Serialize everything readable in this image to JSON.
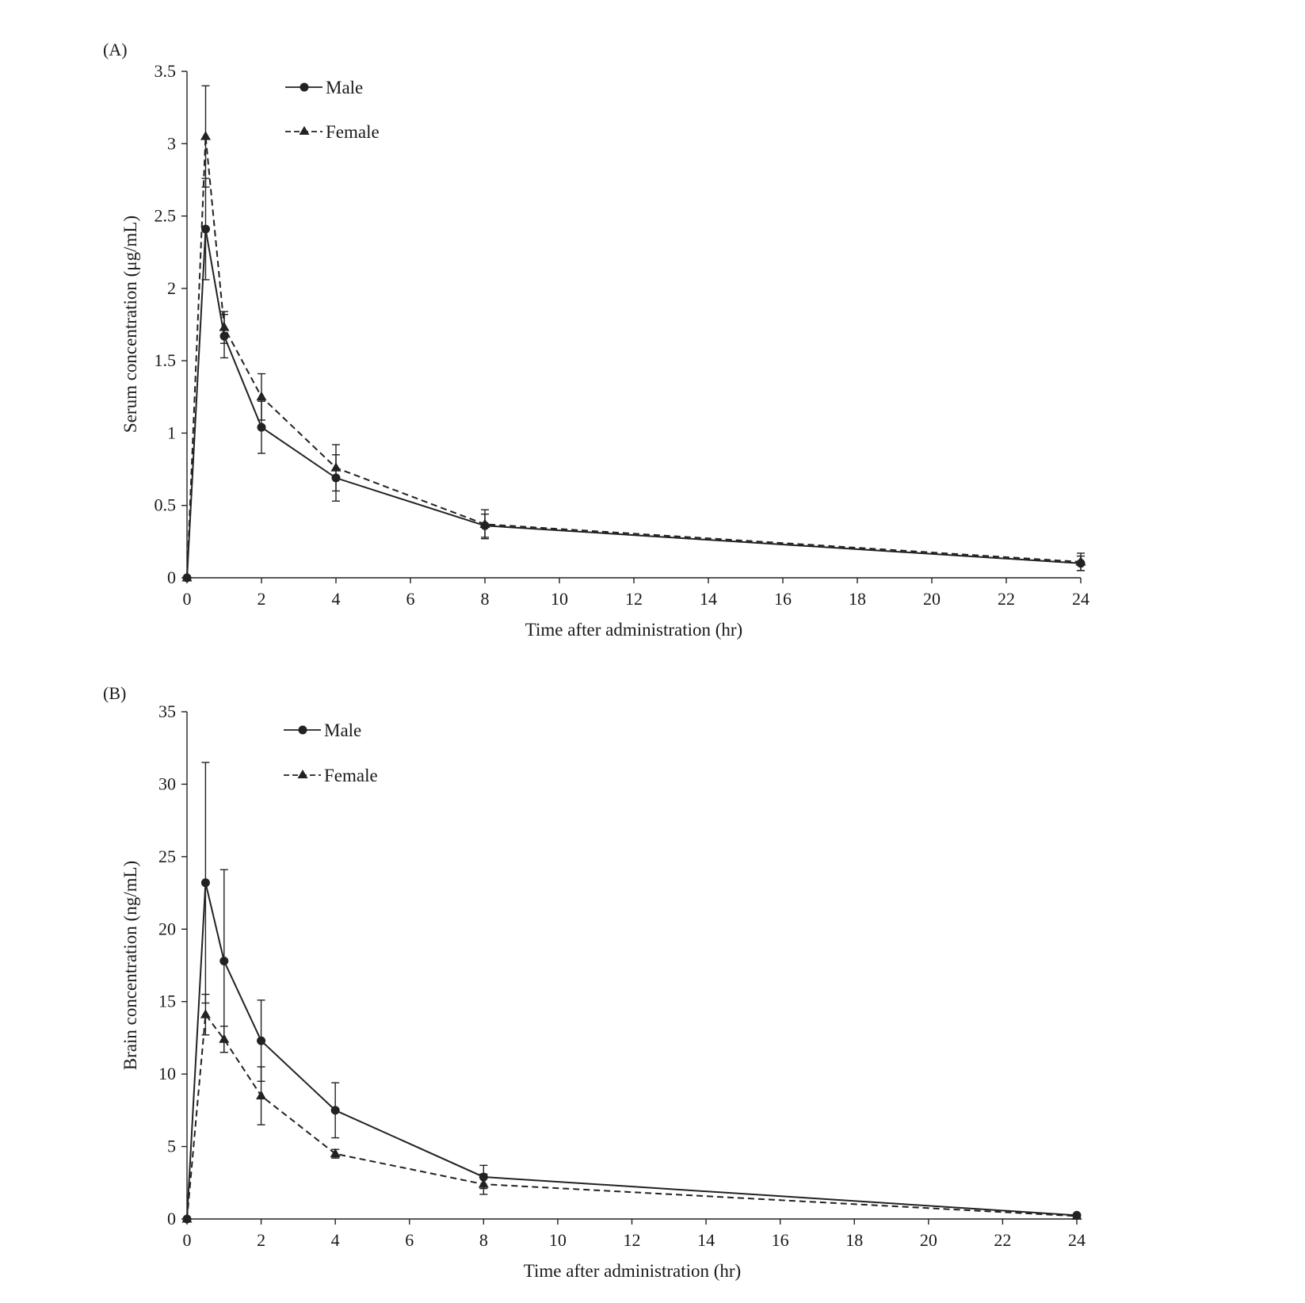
{
  "chart_data": [
    {
      "panel": "(A)",
      "type": "line",
      "xlabel": "Time after administration (hr)",
      "ylabel": "Serum concentration (μg/mL)",
      "xlim": [
        0,
        24
      ],
      "ylim": [
        0,
        3.5
      ],
      "xticks": [
        "0",
        "2",
        "4",
        "6",
        "8",
        "10",
        "12",
        "14",
        "16",
        "18",
        "20",
        "22",
        "24"
      ],
      "yticks": [
        "0",
        "0.5",
        "1",
        "1.5",
        "2",
        "2.5",
        "3",
        "3.5"
      ],
      "legend_position": "top-left",
      "grid": false,
      "x": [
        0,
        0.5,
        1,
        2,
        4,
        8,
        24
      ],
      "series": [
        {
          "name": "Male",
          "marker": "circle",
          "line_style": "solid",
          "color": "#222222",
          "values": [
            0,
            2.41,
            1.67,
            1.04,
            0.69,
            0.36,
            0.1
          ],
          "error": [
            0,
            0.35,
            0.15,
            0.18,
            0.16,
            0.08,
            0.05
          ]
        },
        {
          "name": "Female",
          "marker": "triangle",
          "line_style": "dashed",
          "color": "#222222",
          "values": [
            0,
            3.05,
            1.73,
            1.25,
            0.76,
            0.37,
            0.11
          ],
          "error": [
            0,
            0.35,
            0.11,
            0.16,
            0.16,
            0.1,
            0.06
          ]
        }
      ]
    },
    {
      "panel": "(B)",
      "type": "line",
      "xlabel": "Time after administration (hr)",
      "ylabel": "Brain concentration (ng/mL)",
      "xlim": [
        0,
        24
      ],
      "ylim": [
        0,
        35
      ],
      "xticks": [
        "0",
        "2",
        "4",
        "6",
        "8",
        "10",
        "12",
        "14",
        "16",
        "18",
        "20",
        "22",
        "24"
      ],
      "yticks": [
        "0",
        "5",
        "10",
        "15",
        "20",
        "25",
        "30",
        "35"
      ],
      "legend_position": "top-left",
      "grid": false,
      "x": [
        0,
        0.5,
        1,
        2,
        4,
        8,
        24
      ],
      "series": [
        {
          "name": "Male",
          "marker": "circle",
          "line_style": "solid",
          "color": "#222222",
          "values": [
            0,
            23.2,
            17.8,
            12.3,
            7.5,
            2.9,
            0.25
          ],
          "error": [
            0,
            8.3,
            6.3,
            2.8,
            1.9,
            0.8,
            0.1
          ]
        },
        {
          "name": "Female",
          "marker": "triangle",
          "line_style": "dashed",
          "color": "#222222",
          "values": [
            0,
            14.1,
            12.4,
            8.5,
            4.5,
            2.4,
            0.2
          ],
          "error": [
            0,
            1.4,
            0.9,
            2.0,
            0.3,
            0.7,
            0.1
          ]
        }
      ]
    }
  ]
}
